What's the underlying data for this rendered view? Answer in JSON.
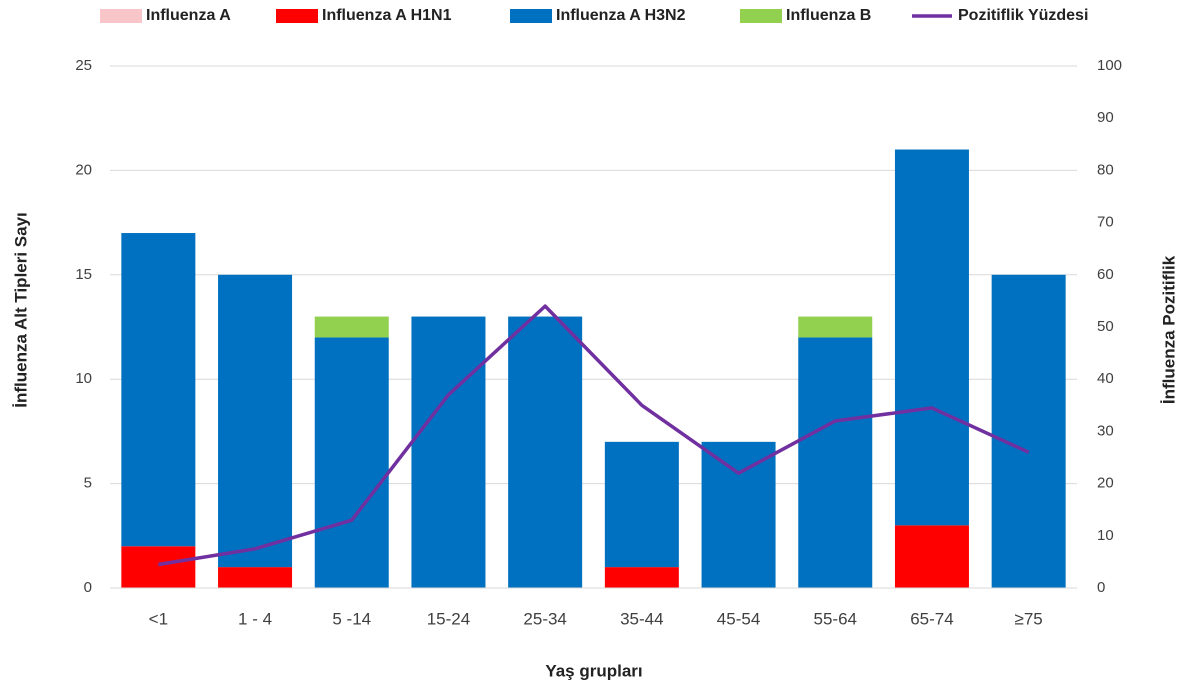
{
  "chart_data": {
    "type": "bar",
    "categories": [
      "<1",
      "1 - 4",
      "5 -14",
      "15-24",
      "25-34",
      "35-44",
      "45-54",
      "55-64",
      "65-74",
      "≥75"
    ],
    "series": [
      {
        "name": "Influenza A",
        "color": "#f8c5c9",
        "values": [
          0,
          0,
          0,
          0,
          0,
          0,
          0,
          0,
          0,
          0
        ]
      },
      {
        "name": "Influenza A H1N1",
        "color": "#ff0000",
        "values": [
          2,
          1,
          0,
          0,
          0,
          1,
          0,
          0,
          3,
          0
        ]
      },
      {
        "name": "Influenza A H3N2",
        "color": "#0070c0",
        "values": [
          15,
          14,
          12,
          13,
          13,
          6,
          7,
          12,
          18,
          15
        ]
      },
      {
        "name": "Influenza B",
        "color": "#92d050",
        "values": [
          0,
          0,
          1,
          0,
          0,
          0,
          0,
          1,
          0,
          0
        ]
      },
      {
        "name": "Pozitiflik Yüzdesi",
        "color": "#7030a0",
        "type": "line",
        "axis": "y2",
        "values": [
          4.5,
          7.5,
          13,
          37,
          54,
          35,
          22,
          32,
          34.5,
          26
        ]
      }
    ],
    "stacked": true,
    "ylabel": "İnfluenza Alt Tipleri Sayı",
    "y2label": "İnfluenza Pozitiflik",
    "xlabel": "Yaş grupları",
    "ylim": [
      0,
      25
    ],
    "yticks": [
      0,
      5,
      10,
      15,
      20,
      25
    ],
    "y2lim": [
      0,
      100
    ],
    "y2ticks": [
      0,
      10,
      20,
      30,
      40,
      50,
      60,
      70,
      80,
      90,
      100
    ],
    "grid": true,
    "legend": "top"
  }
}
